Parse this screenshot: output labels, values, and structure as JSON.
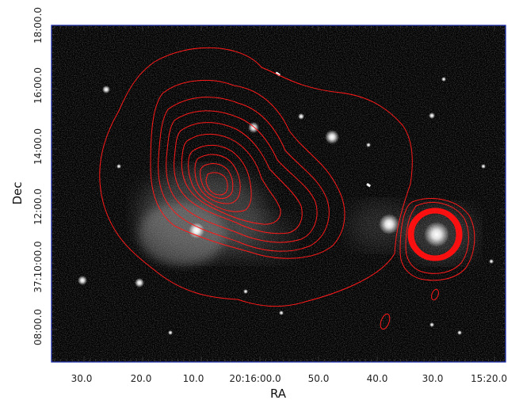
{
  "axes": {
    "xlabel": "RA",
    "ylabel": "Dec",
    "x_ticks": [
      "30.0",
      "20.0",
      "10.0",
      "20:16:00.0",
      "50.0",
      "40.0",
      "30.0",
      "15:20.0"
    ],
    "y_ticks": [
      "18:00.0",
      "16:00.0",
      "14:00.0",
      "12:00.0",
      "37:10:00.0",
      "08:00.0"
    ]
  },
  "colors": {
    "background": "#000000",
    "frame": "#1f2fae",
    "contour": "#ff1a1a"
  }
}
